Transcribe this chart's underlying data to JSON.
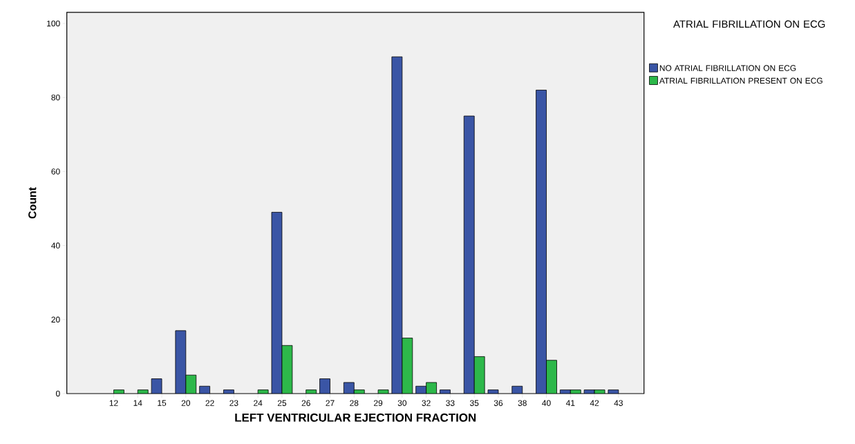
{
  "chart_data": {
    "type": "bar",
    "xlabel": "LEFT VENTRICULAR EJECTION FRACTION",
    "ylabel": "Count",
    "legend_title": "ATRIAL FIBRILLATION ON ECG",
    "categories": [
      "12",
      "14",
      "15",
      "20",
      "22",
      "23",
      "24",
      "25",
      "26",
      "27",
      "28",
      "29",
      "30",
      "32",
      "33",
      "35",
      "36",
      "38",
      "40",
      "41",
      "42",
      "43"
    ],
    "series": [
      {
        "name": "NO ATRIAL FIBRILLATION ON ECG",
        "color": "#3a55a5",
        "values": [
          null,
          null,
          4,
          17,
          2,
          1,
          null,
          49,
          null,
          4,
          3,
          null,
          91,
          2,
          1,
          75,
          1,
          2,
          82,
          1,
          1,
          1
        ]
      },
      {
        "name": "ATRIAL FIBRILLATION PRESENT ON ECG",
        "color": "#2db84a",
        "values": [
          1,
          1,
          null,
          5,
          null,
          null,
          1,
          13,
          1,
          null,
          1,
          1,
          15,
          3,
          null,
          10,
          null,
          null,
          9,
          1,
          1,
          null
        ]
      }
    ],
    "ylim": [
      0,
      103
    ],
    "yticks": [
      0,
      20,
      40,
      60,
      80,
      100
    ],
    "legend": "top right"
  }
}
